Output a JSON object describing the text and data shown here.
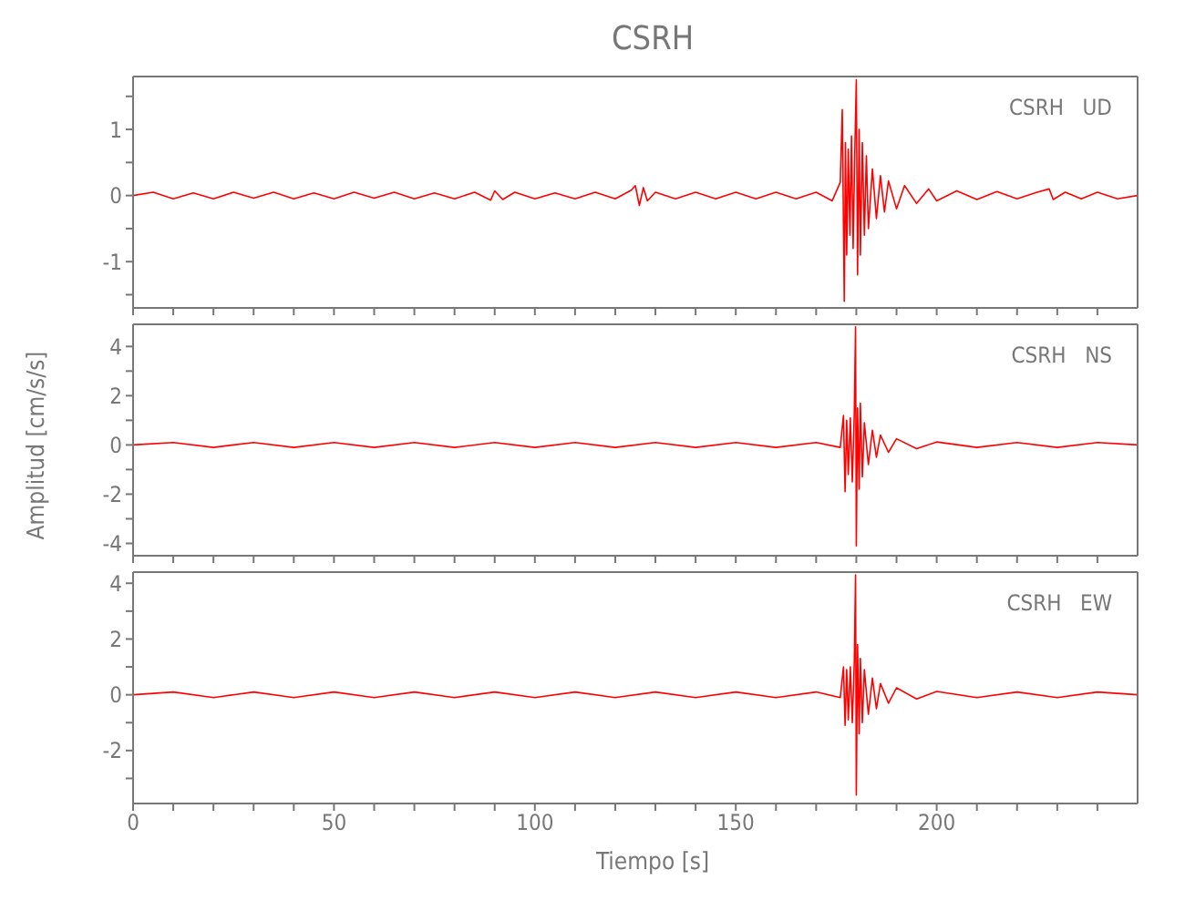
{
  "chart_data": [
    {
      "type": "line",
      "title": "CSRH",
      "annotations": [
        "CSRH   UD"
      ],
      "tick_labels": "y",
      "marker": "none",
      "xlim": [
        0,
        250
      ],
      "xticks": [
        0,
        {
          "value": 10,
          "label": null
        },
        {
          "value": 20,
          "label": null
        },
        {
          "value": 30,
          "label": null
        },
        {
          "value": 40,
          "label": null
        },
        50,
        {
          "value": 60,
          "label": null
        },
        {
          "value": 70,
          "label": null
        },
        {
          "value": 80,
          "label": null
        },
        {
          "value": 90,
          "label": null
        },
        100,
        {
          "value": 110,
          "label": null
        },
        {
          "value": 120,
          "label": null
        },
        {
          "value": 130,
          "label": null
        },
        {
          "value": 140,
          "label": null
        },
        150,
        {
          "value": 160,
          "label": null
        },
        {
          "value": 170,
          "label": null
        },
        {
          "value": 180,
          "label": null
        },
        {
          "value": 190,
          "label": null
        },
        200,
        {
          "value": 210,
          "label": null
        },
        {
          "value": 220,
          "label": null
        },
        {
          "value": 230,
          "label": null
        },
        {
          "value": 240,
          "label": null
        }
      ],
      "ylim": [
        -1.7,
        1.8
      ],
      "yticks": [
        {
          "value": -1.5,
          "label": null
        },
        -1,
        {
          "value": -0.5,
          "label": null
        },
        0,
        {
          "value": 0.5,
          "label": null
        },
        1,
        {
          "value": 1.5,
          "label": null
        }
      ],
      "x": [
        0,
        5,
        10,
        15,
        20,
        25,
        30,
        35,
        40,
        45,
        50,
        55,
        60,
        65,
        70,
        75,
        80,
        85,
        89,
        90,
        92,
        95,
        100,
        105,
        110,
        115,
        120,
        124,
        125,
        126,
        127,
        128,
        130,
        135,
        140,
        145,
        150,
        155,
        160,
        165,
        170,
        174,
        176,
        176.5,
        177,
        177.3,
        177.6,
        178,
        178.4,
        178.8,
        179.2,
        179.6,
        180,
        180.3,
        180.7,
        181,
        181.5,
        182,
        182.5,
        183,
        184,
        185,
        186,
        187,
        188,
        190,
        192,
        195,
        198,
        200,
        205,
        210,
        215,
        220,
        225,
        228,
        229,
        232,
        236,
        240,
        245,
        250
      ],
      "series": [
        {
          "color": "#ff0000",
          "values": [
            0,
            0.05,
            -0.05,
            0.04,
            -0.05,
            0.05,
            -0.04,
            0.05,
            -0.05,
            0.04,
            -0.05,
            0.05,
            -0.04,
            0.05,
            -0.05,
            0.04,
            -0.05,
            0.05,
            -0.07,
            0.07,
            -0.06,
            0.05,
            -0.05,
            0.04,
            -0.05,
            0.05,
            -0.05,
            0.08,
            0.15,
            -0.15,
            0.12,
            -0.08,
            0.05,
            -0.05,
            0.05,
            -0.05,
            0.05,
            -0.05,
            0.05,
            -0.05,
            0.05,
            -0.08,
            0.2,
            1.3,
            -1.6,
            0.8,
            -0.9,
            0.7,
            -0.6,
            0.9,
            -0.8,
            0.6,
            1.75,
            -1.2,
            1.0,
            -0.9,
            0.8,
            -0.6,
            0.6,
            -0.5,
            0.4,
            -0.35,
            0.3,
            -0.25,
            0.22,
            -0.2,
            0.15,
            -0.12,
            0.1,
            -0.08,
            0.07,
            -0.06,
            0.06,
            -0.05,
            0.05,
            0.1,
            -0.06,
            0.05,
            -0.05,
            0.05,
            -0.05,
            0
          ]
        }
      ]
    },
    {
      "type": "line",
      "ylabel": "Amplitud [cm/s/s]",
      "annotations": [
        "CSRH   NS"
      ],
      "tick_labels": "y",
      "marker": "none",
      "xlim": [
        0,
        250
      ],
      "xticks": [
        0,
        {
          "value": 10,
          "label": null
        },
        {
          "value": 20,
          "label": null
        },
        {
          "value": 30,
          "label": null
        },
        {
          "value": 40,
          "label": null
        },
        50,
        {
          "value": 60,
          "label": null
        },
        {
          "value": 70,
          "label": null
        },
        {
          "value": 80,
          "label": null
        },
        {
          "value": 90,
          "label": null
        },
        100,
        {
          "value": 110,
          "label": null
        },
        {
          "value": 120,
          "label": null
        },
        {
          "value": 130,
          "label": null
        },
        {
          "value": 140,
          "label": null
        },
        150,
        {
          "value": 160,
          "label": null
        },
        {
          "value": 170,
          "label": null
        },
        {
          "value": 180,
          "label": null
        },
        {
          "value": 190,
          "label": null
        },
        200,
        {
          "value": 210,
          "label": null
        },
        {
          "value": 220,
          "label": null
        },
        {
          "value": 230,
          "label": null
        },
        {
          "value": 240,
          "label": null
        }
      ],
      "ylim": [
        -4.5,
        4.9
      ],
      "yticks": [
        -4,
        {
          "value": -3,
          "label": null
        },
        -2,
        {
          "value": -1,
          "label": null
        },
        0,
        {
          "value": 1,
          "label": null
        },
        2,
        {
          "value": 3,
          "label": null
        },
        4
      ],
      "x": [
        0,
        10,
        20,
        30,
        40,
        50,
        60,
        70,
        80,
        90,
        100,
        110,
        120,
        130,
        140,
        150,
        160,
        170,
        176,
        176.8,
        177.2,
        177.6,
        178,
        178.5,
        179,
        179.5,
        179.8,
        180,
        180.3,
        180.7,
        181,
        181.5,
        182,
        183,
        184,
        185,
        186,
        188,
        190,
        195,
        200,
        210,
        220,
        230,
        240,
        250
      ],
      "series": [
        {
          "color": "#ff0000",
          "values": [
            0,
            0.1,
            -0.1,
            0.1,
            -0.1,
            0.1,
            -0.1,
            0.1,
            -0.1,
            0.1,
            -0.1,
            0.1,
            -0.1,
            0.1,
            -0.1,
            0.1,
            -0.1,
            0.1,
            -0.1,
            1.2,
            -1.9,
            1.0,
            -1.2,
            1.1,
            -1.5,
            1.3,
            4.8,
            -4.1,
            1.5,
            -1.8,
            1.7,
            -1.3,
            0.9,
            -0.8,
            0.6,
            -0.5,
            0.4,
            -0.3,
            0.25,
            -0.15,
            0.12,
            -0.1,
            0.1,
            -0.1,
            0.1,
            0
          ]
        }
      ]
    },
    {
      "type": "line",
      "xlabel": "Tiempo [s]",
      "annotations": [
        "CSRH   EW"
      ],
      "marker": "none",
      "xlim": [
        0,
        250
      ],
      "xticks": [
        0,
        {
          "value": 10,
          "label": null
        },
        {
          "value": 20,
          "label": null
        },
        {
          "value": 30,
          "label": null
        },
        {
          "value": 40,
          "label": null
        },
        50,
        {
          "value": 60,
          "label": null
        },
        {
          "value": 70,
          "label": null
        },
        {
          "value": 80,
          "label": null
        },
        {
          "value": 90,
          "label": null
        },
        100,
        {
          "value": 110,
          "label": null
        },
        {
          "value": 120,
          "label": null
        },
        {
          "value": 130,
          "label": null
        },
        {
          "value": 140,
          "label": null
        },
        150,
        {
          "value": 160,
          "label": null
        },
        {
          "value": 170,
          "label": null
        },
        {
          "value": 180,
          "label": null
        },
        {
          "value": 190,
          "label": null
        },
        200,
        {
          "value": 210,
          "label": null
        },
        {
          "value": 220,
          "label": null
        },
        {
          "value": 230,
          "label": null
        },
        {
          "value": 240,
          "label": null
        }
      ],
      "ylim": [
        -3.9,
        4.4
      ],
      "yticks": [
        {
          "value": -3,
          "label": null
        },
        -2,
        {
          "value": -1,
          "label": null
        },
        0,
        {
          "value": 1,
          "label": null
        },
        2,
        {
          "value": 3,
          "label": null
        },
        4
      ],
      "x": [
        0,
        10,
        20,
        30,
        40,
        50,
        60,
        70,
        80,
        90,
        100,
        110,
        120,
        130,
        140,
        150,
        160,
        170,
        176,
        176.8,
        177.2,
        177.6,
        178,
        178.5,
        179,
        179.5,
        179.8,
        180,
        180.3,
        180.7,
        181,
        181.5,
        182,
        183,
        184,
        185,
        186,
        188,
        190,
        195,
        200,
        210,
        220,
        230,
        240,
        250
      ],
      "series": [
        {
          "color": "#ff0000",
          "values": [
            0,
            0.1,
            -0.1,
            0.1,
            -0.1,
            0.1,
            -0.1,
            0.1,
            -0.1,
            0.1,
            -0.1,
            0.1,
            -0.1,
            0.1,
            -0.1,
            0.1,
            -0.1,
            0.1,
            -0.1,
            1.0,
            -1.1,
            0.9,
            -0.9,
            1.0,
            -1.0,
            1.2,
            4.3,
            -3.6,
            1.8,
            -1.4,
            1.3,
            -1.0,
            0.9,
            -0.7,
            0.6,
            -0.5,
            0.4,
            -0.3,
            0.25,
            -0.15,
            0.12,
            -0.1,
            0.1,
            -0.1,
            0.1,
            0
          ]
        }
      ]
    }
  ]
}
